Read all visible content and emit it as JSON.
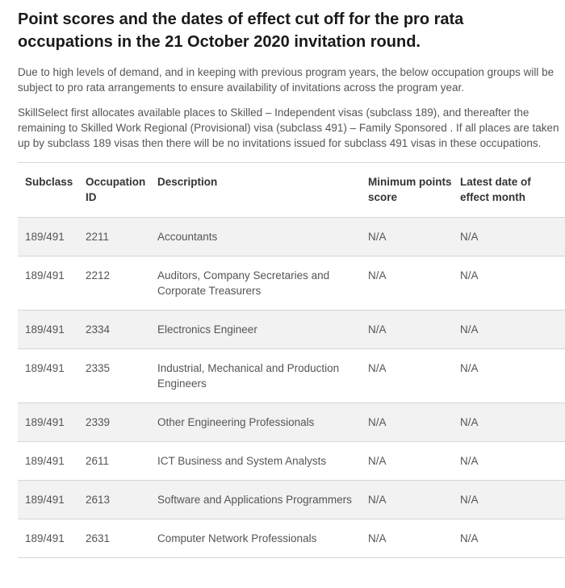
{
  "heading": "Point scores and the dates of effect cut off for the pro rata occupations in the 21 October 2020 invitation round.",
  "paragraphs": [
    "Due to high levels of demand, and in keeping with previous program years, the below occupation groups will be subject to pro rata arrangements to ensure availability of invitations across the program year.",
    "SkillSelect first allocates available places to Skilled – Independent visas (subclass 189), and thereafter the remaining to Skilled Work Regional (Provisional) visa (subclass 491) – Family Sponsored . If all places are taken up by subclass 189 visas then there will be no invitations issued for subclass 491 visas in these occupations."
  ],
  "table": {
    "headers": [
      "Subclass",
      "Occupation ID",
      "Description",
      "Minimum points score",
      "Latest date of effect month"
    ],
    "rows": [
      [
        "189/491",
        "2211",
        "Accountants",
        "N/A",
        "N/A"
      ],
      [
        "189/491",
        "2212",
        "Auditors, Company Secretaries and Corporate Treasurers",
        "N/A",
        "N/A"
      ],
      [
        "189/491",
        "2334",
        "Electronics Engineer",
        "N/A",
        "N/A"
      ],
      [
        "189/491",
        "2335",
        "Industrial, Mechanical and Production Engineers",
        "N/A",
        "N/A"
      ],
      [
        "189/491",
        "2339",
        "Other Engineering Professionals",
        "N/A",
        "N/A"
      ],
      [
        "189/491",
        "2611",
        "ICT Business and System Analysts",
        "N/A",
        "N/A"
      ],
      [
        "189/491",
        "2613",
        "Software and Applications Programmers",
        "N/A",
        "N/A"
      ],
      [
        "189/491",
        "2631",
        "Computer Network Professionals",
        "N/A",
        "N/A"
      ]
    ]
  },
  "colors": {
    "row_shade": "#f2f2f2",
    "border": "#d6d6d6",
    "heading": "#1a1a1a"
  }
}
